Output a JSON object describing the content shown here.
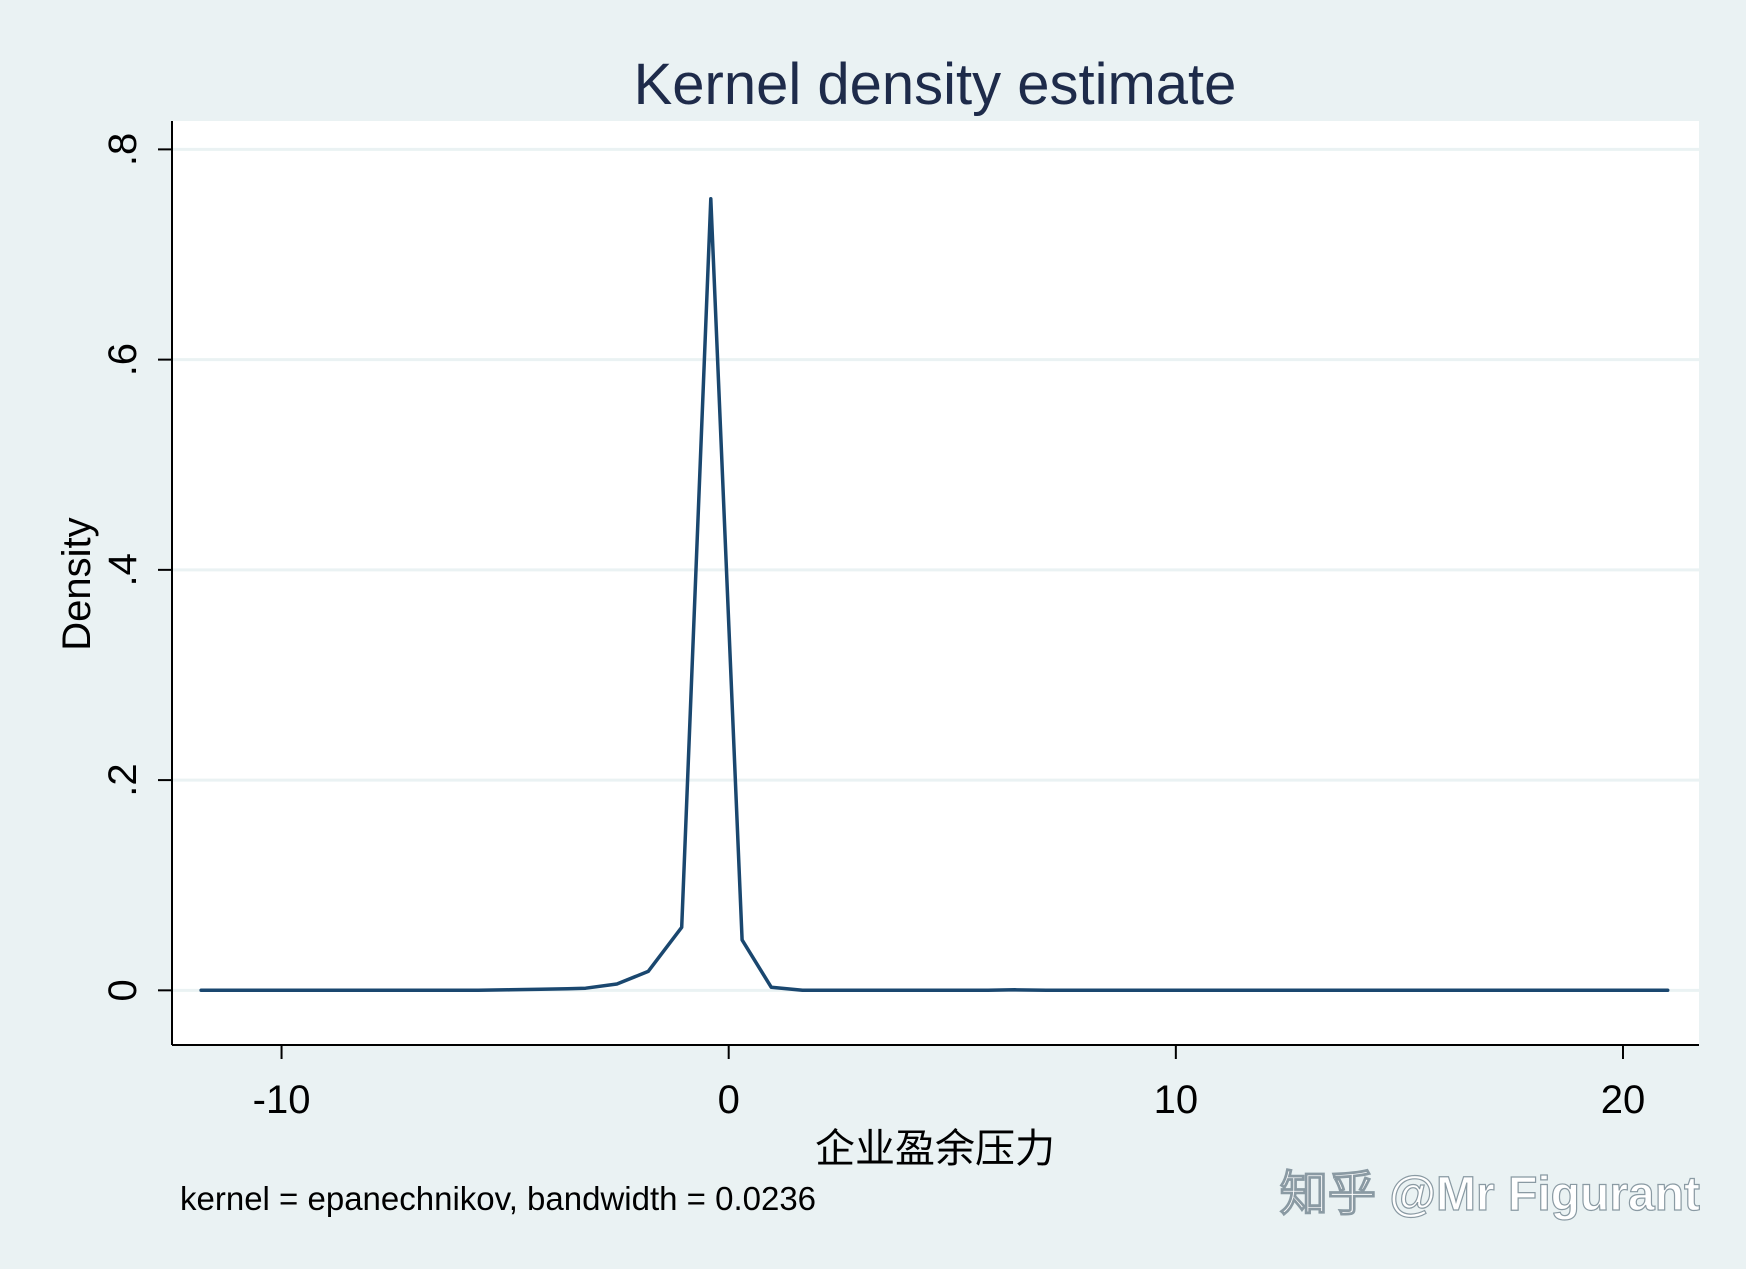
{
  "chart_data": {
    "type": "line",
    "title": "Kernel density estimate",
    "xlabel": "企业盈余压力",
    "ylabel": "Density",
    "note": "kernel = epanechnikov, bandwidth = 0.0236",
    "watermark": "知乎 @Mr Figurant",
    "xlim": [
      -12.45,
      21.7
    ],
    "ylim": [
      -0.052,
      0.827
    ],
    "x_ticks": [
      -10,
      0,
      10,
      20
    ],
    "x_tick_labels": [
      "-10",
      "0",
      "10",
      "20"
    ],
    "y_ticks": [
      0,
      0.2,
      0.4,
      0.6,
      0.8
    ],
    "y_tick_labels": [
      "0",
      ".2",
      ".4",
      ".6",
      ".8"
    ],
    "grid": true,
    "legend": "none",
    "series": [
      {
        "x": [
          -11.8,
          -11.1,
          -10.4,
          -9.7,
          -9.0,
          -8.3,
          -7.6,
          -6.9,
          -6.3,
          -5.6,
          -4.9,
          -4.2,
          -3.6,
          -3.2,
          -2.5,
          -1.8,
          -1.05,
          -0.4,
          0.3,
          0.95,
          1.65,
          2.3,
          3.0,
          3.7,
          4.4,
          5.1,
          5.8,
          6.4,
          7.1,
          7.8,
          8.5,
          9.2,
          9.9,
          10.6,
          11.3,
          12.0,
          12.7,
          13.4,
          14.1,
          14.8,
          15.5,
          16.2,
          16.9,
          17.6,
          18.3,
          19.0,
          19.7,
          20.4,
          21.0
        ],
        "y": [
          0.0,
          0.0,
          0.0,
          0.0,
          0.0,
          0.0,
          0.0,
          0.0,
          0.0,
          0.0,
          0.0005,
          0.001,
          0.0015,
          0.002,
          0.006,
          0.018,
          0.06,
          0.753,
          0.048,
          0.003,
          0.0,
          0.0,
          0.0,
          0.0,
          0.0,
          0.0,
          0.0,
          0.0005,
          0.0,
          0.0,
          0.0,
          0.0,
          0.0,
          0.0,
          0.0,
          0.0,
          0.0,
          0.0,
          0.0,
          0.0,
          0.0,
          0.0,
          0.0,
          0.0,
          0.0,
          0.0,
          0.0,
          0.0,
          0.0
        ]
      }
    ],
    "colors": {
      "background": "#eaf2f3",
      "plot_background": "#ffffff",
      "line": "#1a476f",
      "title": "#1e2b4a",
      "grid": "#eaf2f3",
      "watermark": "#ffffff"
    }
  }
}
